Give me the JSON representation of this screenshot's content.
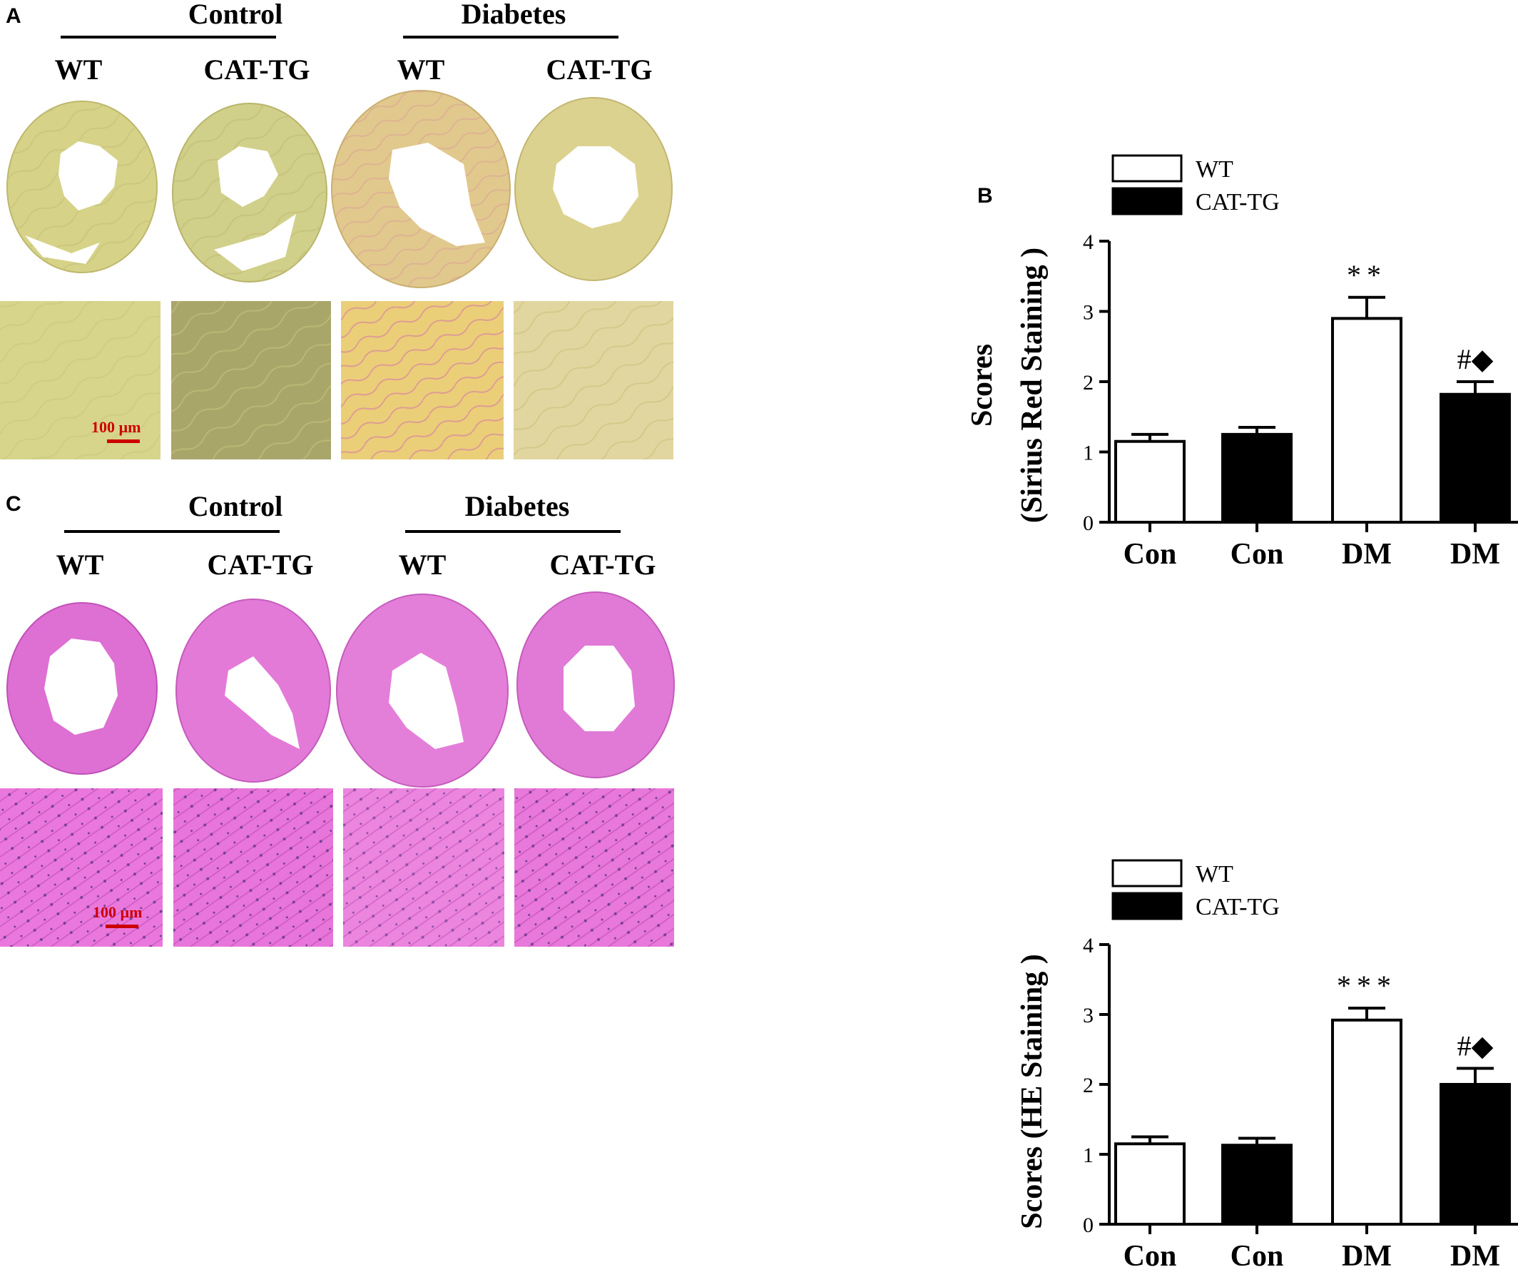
{
  "panels": {
    "A": {
      "letter": "A",
      "group_control": "Control",
      "group_diabetes": "Diabetes",
      "sub_labels": [
        "WT",
        "CAT-TG",
        "WT",
        "CAT-TG"
      ],
      "scale_bar": "100 µm"
    },
    "C": {
      "letter": "C",
      "group_control": "Control",
      "group_diabetes": "Diabetes",
      "sub_labels": [
        "WT",
        "CAT-TG",
        "WT",
        "CAT-TG"
      ],
      "scale_bar": "100 µm"
    }
  },
  "colors": {
    "sirius_tissue": "#d8d48a",
    "sirius_tissue_dm": "#e3c98d",
    "he_tissue": "#de6fd3",
    "scale_bar": "#cc0000"
  },
  "chart_data": [
    {
      "panel_letter": "B",
      "type": "bar",
      "categories": [
        "Con",
        "Con",
        "DM",
        "DM"
      ],
      "series": [
        {
          "name": "WT",
          "values": [
            1.15,
            null,
            2.9,
            null
          ],
          "errors": [
            0.1,
            null,
            0.3,
            null
          ],
          "fill": "#ffffff"
        },
        {
          "name": "CAT-TG",
          "values": [
            null,
            1.25,
            null,
            1.82
          ],
          "errors": [
            null,
            0.1,
            null,
            0.18
          ],
          "fill": "#000000"
        }
      ],
      "annotations": [
        "",
        "",
        "**",
        "#◆"
      ],
      "ylabel_line1": "Scores",
      "ylabel_line2": "(Sirius Red Staining )",
      "yticks": [
        "0",
        "1",
        "2",
        "3",
        "4"
      ],
      "ylim": [
        0,
        4
      ],
      "legend": [
        "WT",
        "CAT-TG"
      ],
      "legend_position": "top-left"
    },
    {
      "type": "bar",
      "categories": [
        "Con",
        "Con",
        "DM",
        "DM"
      ],
      "series": [
        {
          "name": "WT",
          "values": [
            1.15,
            null,
            2.92,
            null
          ],
          "errors": [
            0.1,
            null,
            0.17,
            null
          ],
          "fill": "#ffffff"
        },
        {
          "name": "CAT-TG",
          "values": [
            null,
            1.13,
            null,
            2.0
          ],
          "errors": [
            null,
            0.1,
            null,
            0.23
          ],
          "fill": "#000000"
        }
      ],
      "annotations": [
        "",
        "",
        "***",
        "#◆"
      ],
      "ylabel": "Scores (HE Staining )",
      "yticks": [
        "0",
        "1",
        "2",
        "3",
        "4"
      ],
      "ylim": [
        0,
        4
      ],
      "legend": [
        "WT",
        "CAT-TG"
      ],
      "legend_position": "top-left"
    }
  ]
}
